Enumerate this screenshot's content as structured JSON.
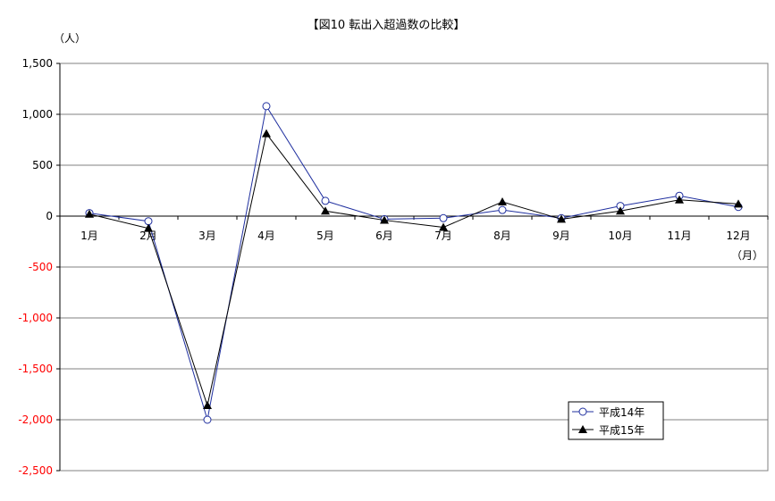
{
  "chart_data": {
    "type": "line",
    "title": "【図10 転出入超過数の比較】",
    "ylabel": "（人）",
    "xlabel": "（月）",
    "categories": [
      "1月",
      "2月",
      "3月",
      "4月",
      "5月",
      "6月",
      "7月",
      "8月",
      "9月",
      "10月",
      "11月",
      "12月"
    ],
    "ylim": [
      -2500,
      1500
    ],
    "yticks": [
      1500,
      1000,
      500,
      0,
      -500,
      -1000,
      -1500,
      -2000,
      -2500
    ],
    "ytick_labels": [
      "1,500",
      "1,000",
      "500",
      "0",
      "-500",
      "-1,000",
      "-1,500",
      "-2,000",
      "-2,500"
    ],
    "grid": true,
    "legend_position": "bottom-right",
    "series": [
      {
        "name": "平成14年",
        "marker": "open-circle",
        "color": "#1f2f9f",
        "values": [
          30,
          -50,
          -2000,
          1080,
          150,
          -30,
          -20,
          60,
          -20,
          100,
          200,
          90
        ]
      },
      {
        "name": "平成15年",
        "marker": "filled-triangle",
        "color": "#000000",
        "values": [
          20,
          -120,
          -1860,
          810,
          50,
          -40,
          -110,
          140,
          -30,
          50,
          160,
          120
        ]
      }
    ],
    "colors": {
      "axis": "#000000",
      "grid": "#808080",
      "negative_tick": "#ff0000"
    }
  }
}
